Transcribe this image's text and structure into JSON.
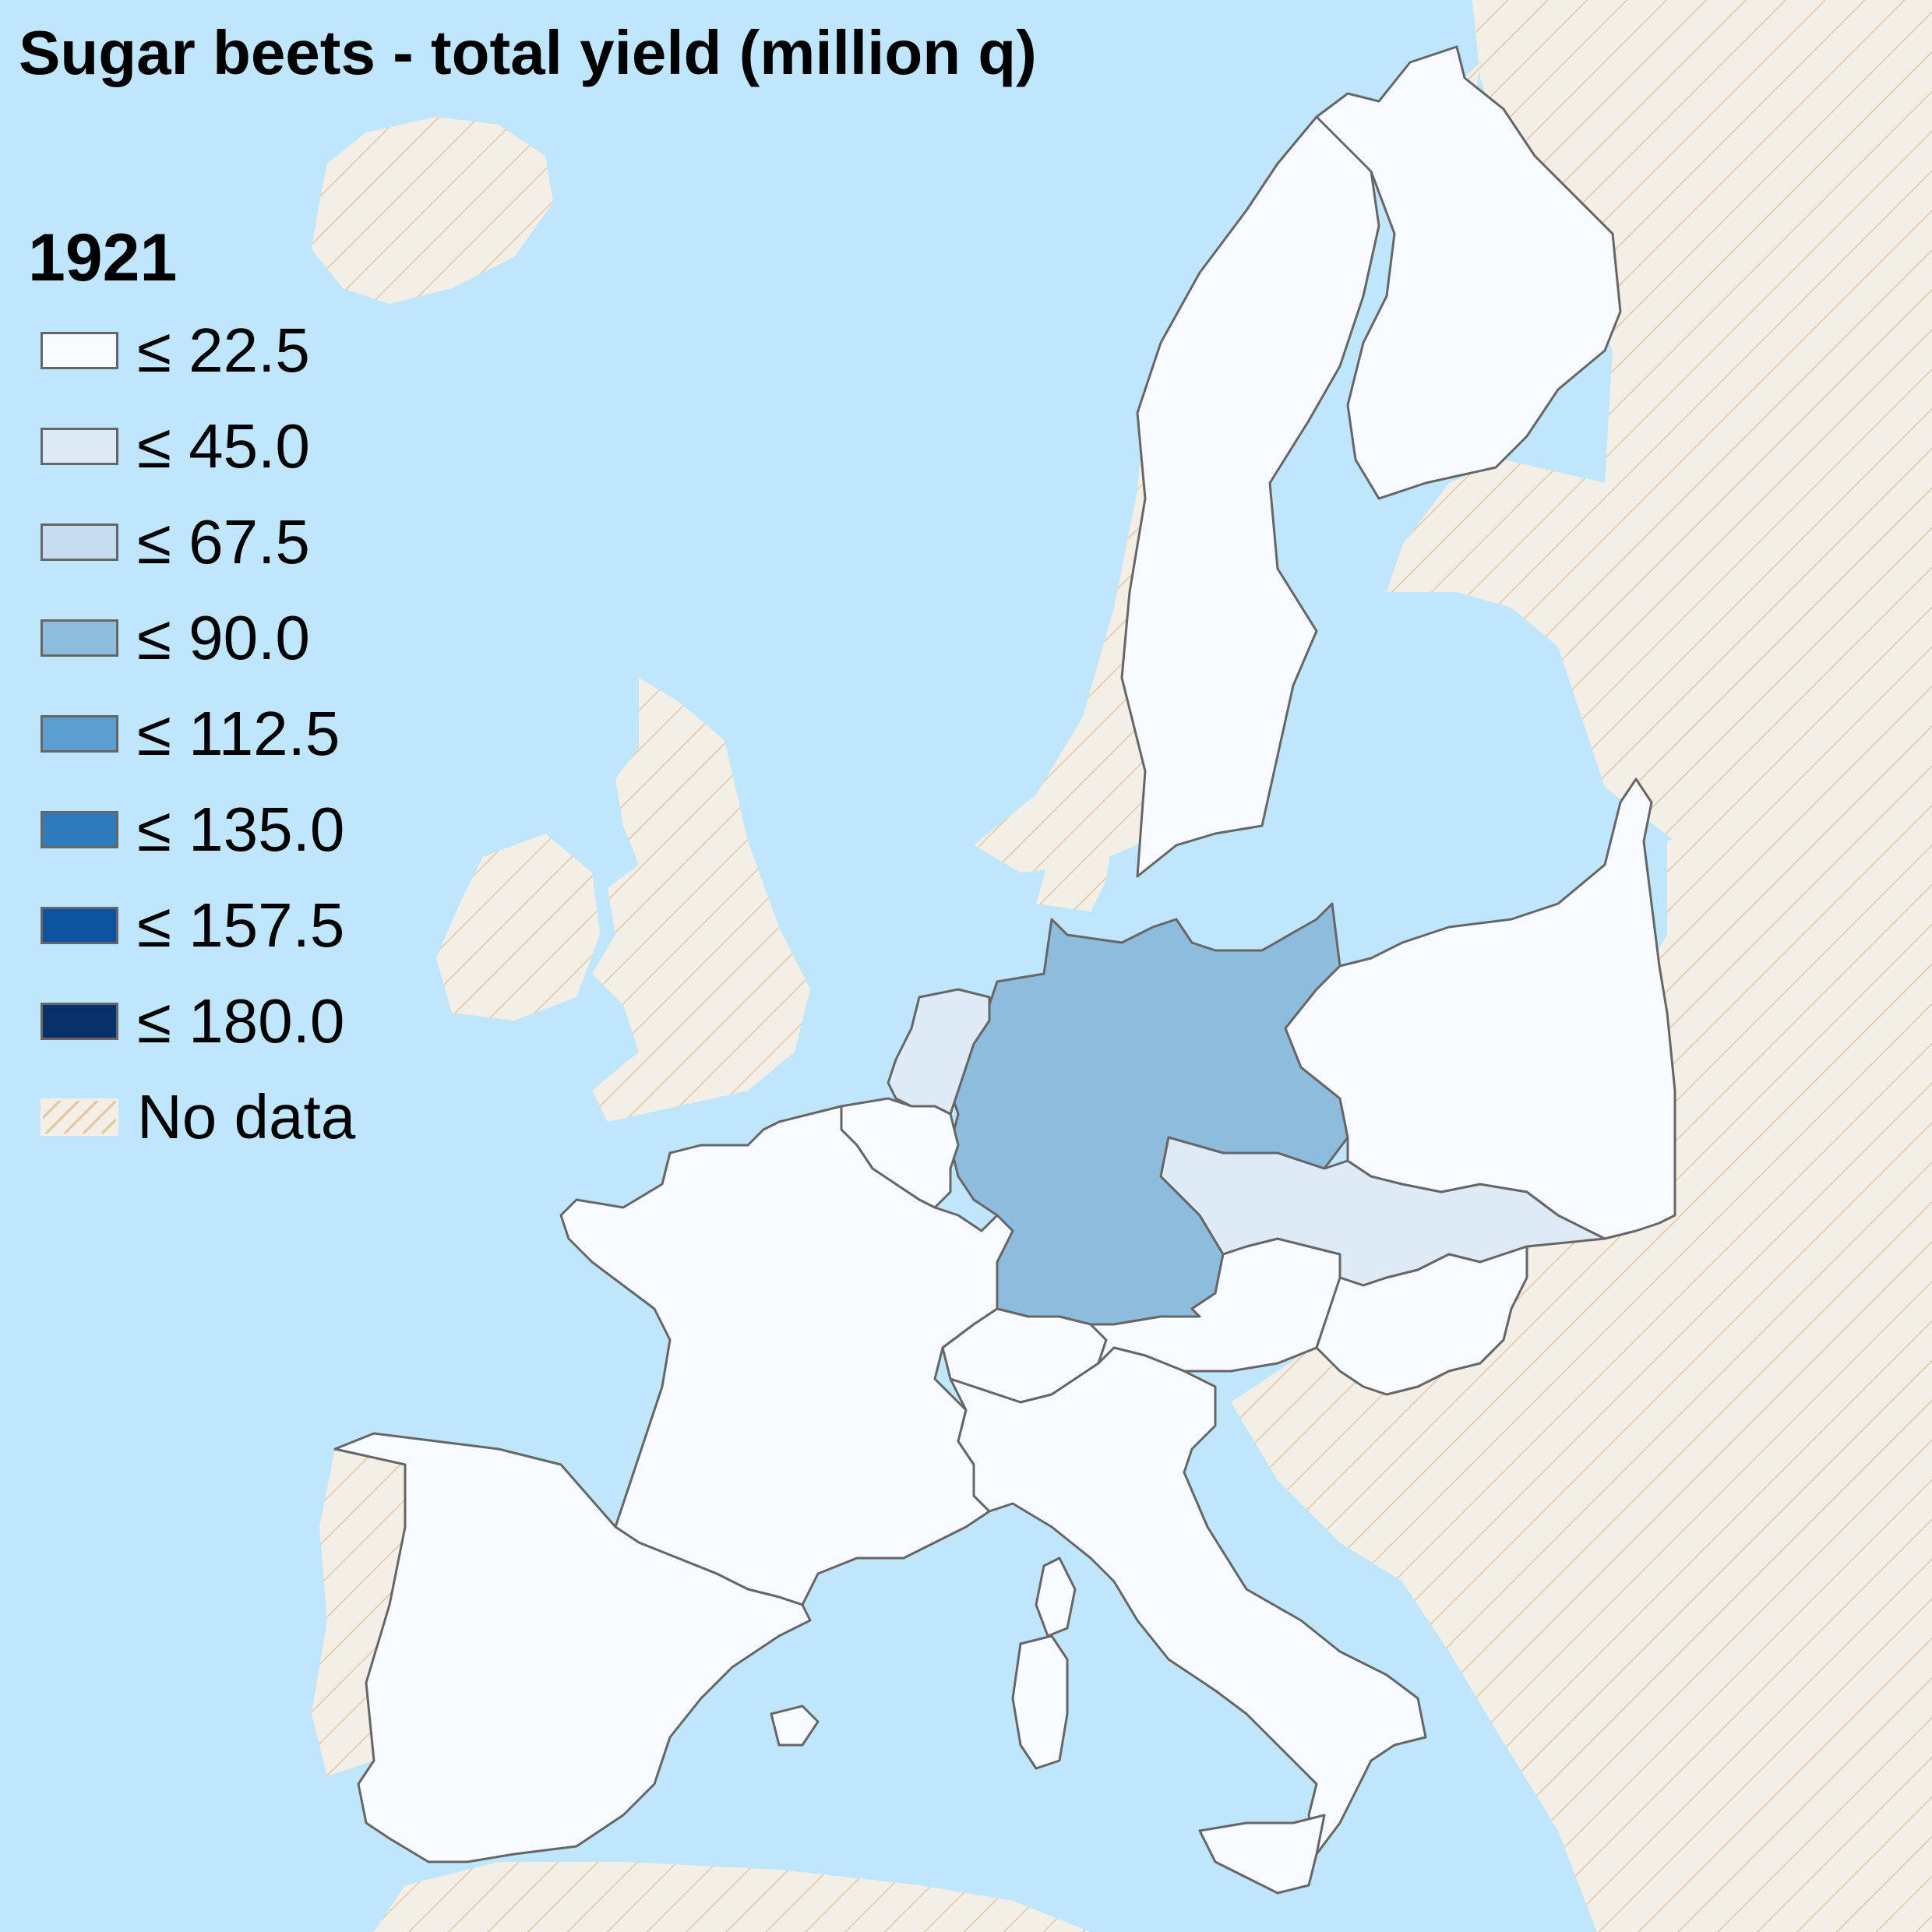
{
  "title": "Sugar beets - total yield (million q)",
  "year": "1921",
  "colors": {
    "sea": "#bfe6fb",
    "no_data": "#f4efe6",
    "hatch": "#e0c7a4",
    "border": "#666666"
  },
  "legend": [
    {
      "label": "≤ 22.5",
      "color": "#f7fbff"
    },
    {
      "label": "≤ 45.0",
      "color": "#deebf7"
    },
    {
      "label": "≤ 67.5",
      "color": "#c6dbef"
    },
    {
      "label": "≤ 90.0",
      "color": "#8dbcdc"
    },
    {
      "label": "≤ 112.5",
      "color": "#5a9fd0"
    },
    {
      "label": "≤ 135.0",
      "color": "#2f7cbd"
    },
    {
      "label": "≤ 157.5",
      "color": "#0d54a0"
    },
    {
      "label": "≤ 180.0",
      "color": "#08306b"
    },
    {
      "label": "No data",
      "pattern": "hatch"
    }
  ],
  "countries": [
    {
      "name": "Germany",
      "class": "≤ 90.0"
    },
    {
      "name": "Czechoslovakia",
      "class": "≤ 45.0"
    },
    {
      "name": "Netherlands",
      "class": "≤ 45.0"
    },
    {
      "name": "France",
      "class": "≤ 22.5"
    },
    {
      "name": "Belgium",
      "class": "≤ 22.5"
    },
    {
      "name": "Spain",
      "class": "≤ 22.5"
    },
    {
      "name": "Italy",
      "class": "≤ 22.5"
    },
    {
      "name": "Switzerland",
      "class": "≤ 22.5"
    },
    {
      "name": "Austria",
      "class": "≤ 22.5"
    },
    {
      "name": "Hungary",
      "class": "≤ 22.5"
    },
    {
      "name": "Poland",
      "class": "≤ 22.5"
    },
    {
      "name": "Sweden",
      "class": "≤ 22.5"
    },
    {
      "name": "Finland",
      "class": "≤ 22.5"
    }
  ]
}
